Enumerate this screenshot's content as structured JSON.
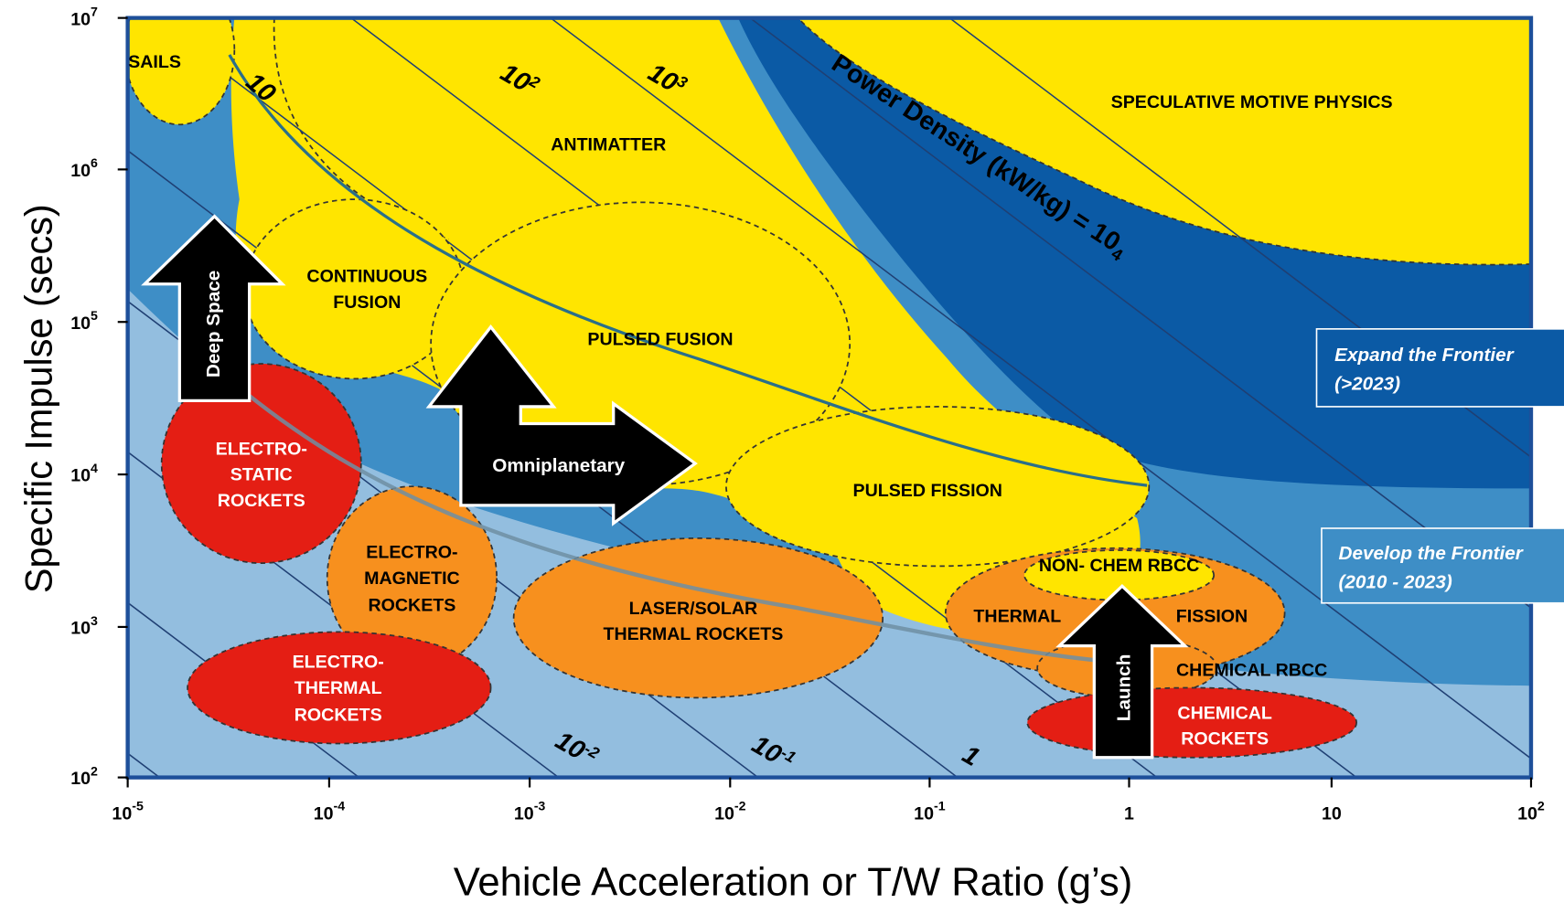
{
  "axes": {
    "y_title": "Specific Impulse (secs)",
    "x_title": "Vehicle Acceleration or T/W Ratio (g’s)",
    "y_ticks": [
      {
        "base": "10",
        "sup": "7"
      },
      {
        "base": "10",
        "sup": "6"
      },
      {
        "base": "10",
        "sup": "5"
      },
      {
        "base": "10",
        "sup": "4"
      },
      {
        "base": "10",
        "sup": "3"
      },
      {
        "base": "10",
        "sup": "2"
      }
    ],
    "x_ticks": [
      {
        "base": "10",
        "sup": "-5"
      },
      {
        "base": "10",
        "sup": "-4"
      },
      {
        "base": "10",
        "sup": "-3"
      },
      {
        "base": "10",
        "sup": "-2"
      },
      {
        "base": "10",
        "sup": "-1"
      },
      {
        "base": "1"
      },
      {
        "base": "10"
      },
      {
        "base": "10",
        "sup": "2"
      }
    ]
  },
  "power_density": {
    "label": "Power Density (kW/kg) = 10",
    "sup": "4",
    "lines": [
      {
        "base": "10"
      },
      {
        "base": "10",
        "sup": "2"
      },
      {
        "base": "10",
        "sup": "3"
      },
      {
        "base": "10",
        "sup": "-2"
      },
      {
        "base": "10",
        "sup": "-1"
      },
      {
        "base": "1"
      }
    ]
  },
  "regions": [
    {
      "lines": [
        "SAILS"
      ]
    },
    {
      "lines": [
        "ANTIMATTER"
      ]
    },
    {
      "lines": [
        "SPECULATIVE MOTIVE PHYSICS"
      ]
    },
    {
      "lines": [
        "CONTINUOUS",
        "FUSION"
      ]
    },
    {
      "lines": [
        "PULSED FUSION"
      ]
    },
    {
      "lines": [
        "PULSED FISSION"
      ]
    },
    {
      "lines": [
        "ELECTRO-",
        "STATIC",
        "ROCKETS"
      ]
    },
    {
      "lines": [
        "ELECTRO-",
        "MAGNETIC",
        "ROCKETS"
      ]
    },
    {
      "lines": [
        "ELECTRO-",
        "THERMAL",
        "ROCKETS"
      ]
    },
    {
      "lines": [
        "LASER/SOLAR",
        "THERMAL ROCKETS"
      ]
    },
    {
      "lines": [
        "NON- CHEM RBCC"
      ]
    },
    {
      "lines": [
        "THERMAL"
      ]
    },
    {
      "lines": [
        "FISSION"
      ]
    },
    {
      "lines": [
        "CHEMICAL RBCC"
      ]
    },
    {
      "lines": [
        "CHEMICAL",
        "ROCKETS"
      ]
    }
  ],
  "arrows": [
    "Deep Space",
    "Omniplanetary",
    "Launch"
  ],
  "frontiers": [
    {
      "lines": [
        "Expand the Frontier",
        "(>2023)"
      ]
    },
    {
      "lines": [
        "Develop the Frontier",
        "(2010 - 2023)"
      ]
    }
  ]
}
